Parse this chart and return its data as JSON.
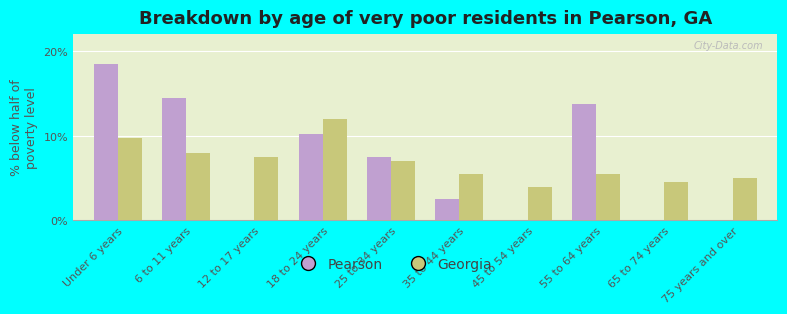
{
  "title": "Breakdown by age of very poor residents in Pearson, GA",
  "ylabel": "% below half of\npoverty level",
  "categories": [
    "Under 6 years",
    "6 to 11 years",
    "12 to 17 years",
    "18 to 24 years",
    "25 to 34 years",
    "35 to 44 years",
    "45 to 54 years",
    "55 to 64 years",
    "65 to 74 years",
    "75 years and over"
  ],
  "pearson_values": [
    18.5,
    14.5,
    0,
    10.2,
    7.5,
    2.5,
    0,
    13.8,
    0,
    0
  ],
  "georgia_values": [
    9.7,
    8.0,
    7.5,
    12.0,
    7.0,
    5.5,
    4.0,
    5.5,
    4.5,
    5.0
  ],
  "pearson_color": "#c0a0d0",
  "georgia_color": "#c8c87a",
  "background_color": "#00ffff",
  "plot_bg_top": "#e8f0d0",
  "plot_bg_bottom": "#f5f8ec",
  "ylim": [
    0,
    22
  ],
  "yticks": [
    0,
    10,
    20
  ],
  "ytick_labels": [
    "0%",
    "10%",
    "20%"
  ],
  "bar_width": 0.35,
  "title_fontsize": 13,
  "label_fontsize": 9,
  "tick_fontsize": 8,
  "legend_labels": [
    "Pearson",
    "Georgia"
  ],
  "watermark": "City-Data.com"
}
